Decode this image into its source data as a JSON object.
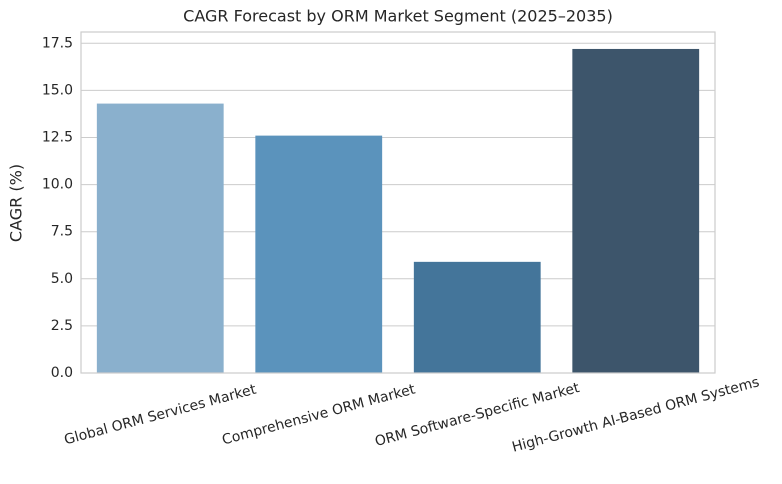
{
  "chart_data": {
    "type": "bar",
    "title": "CAGR Forecast by ORM Market Segment (2025–2035)",
    "y_label": "CAGR (%)",
    "categories": [
      "Global ORM Services Market",
      "Comprehensive ORM Market",
      "ORM Software-Specific Market",
      "High-Growth AI-Based ORM Systems"
    ],
    "values": [
      14.3,
      12.6,
      5.9,
      17.2
    ],
    "colors": [
      "#8ab0cd",
      "#5b93bc",
      "#44759a",
      "#3d556b"
    ],
    "ylim": [
      0,
      18.1
    ],
    "yticks": [
      {
        "value": 0,
        "label": "0.0"
      },
      2.5,
      {
        "value": 5,
        "label": "5.0"
      },
      7.5,
      {
        "value": 10,
        "label": "10.0"
      },
      12.5,
      {
        "value": 15,
        "label": "15.0"
      },
      17.5
    ],
    "grid": true
  }
}
